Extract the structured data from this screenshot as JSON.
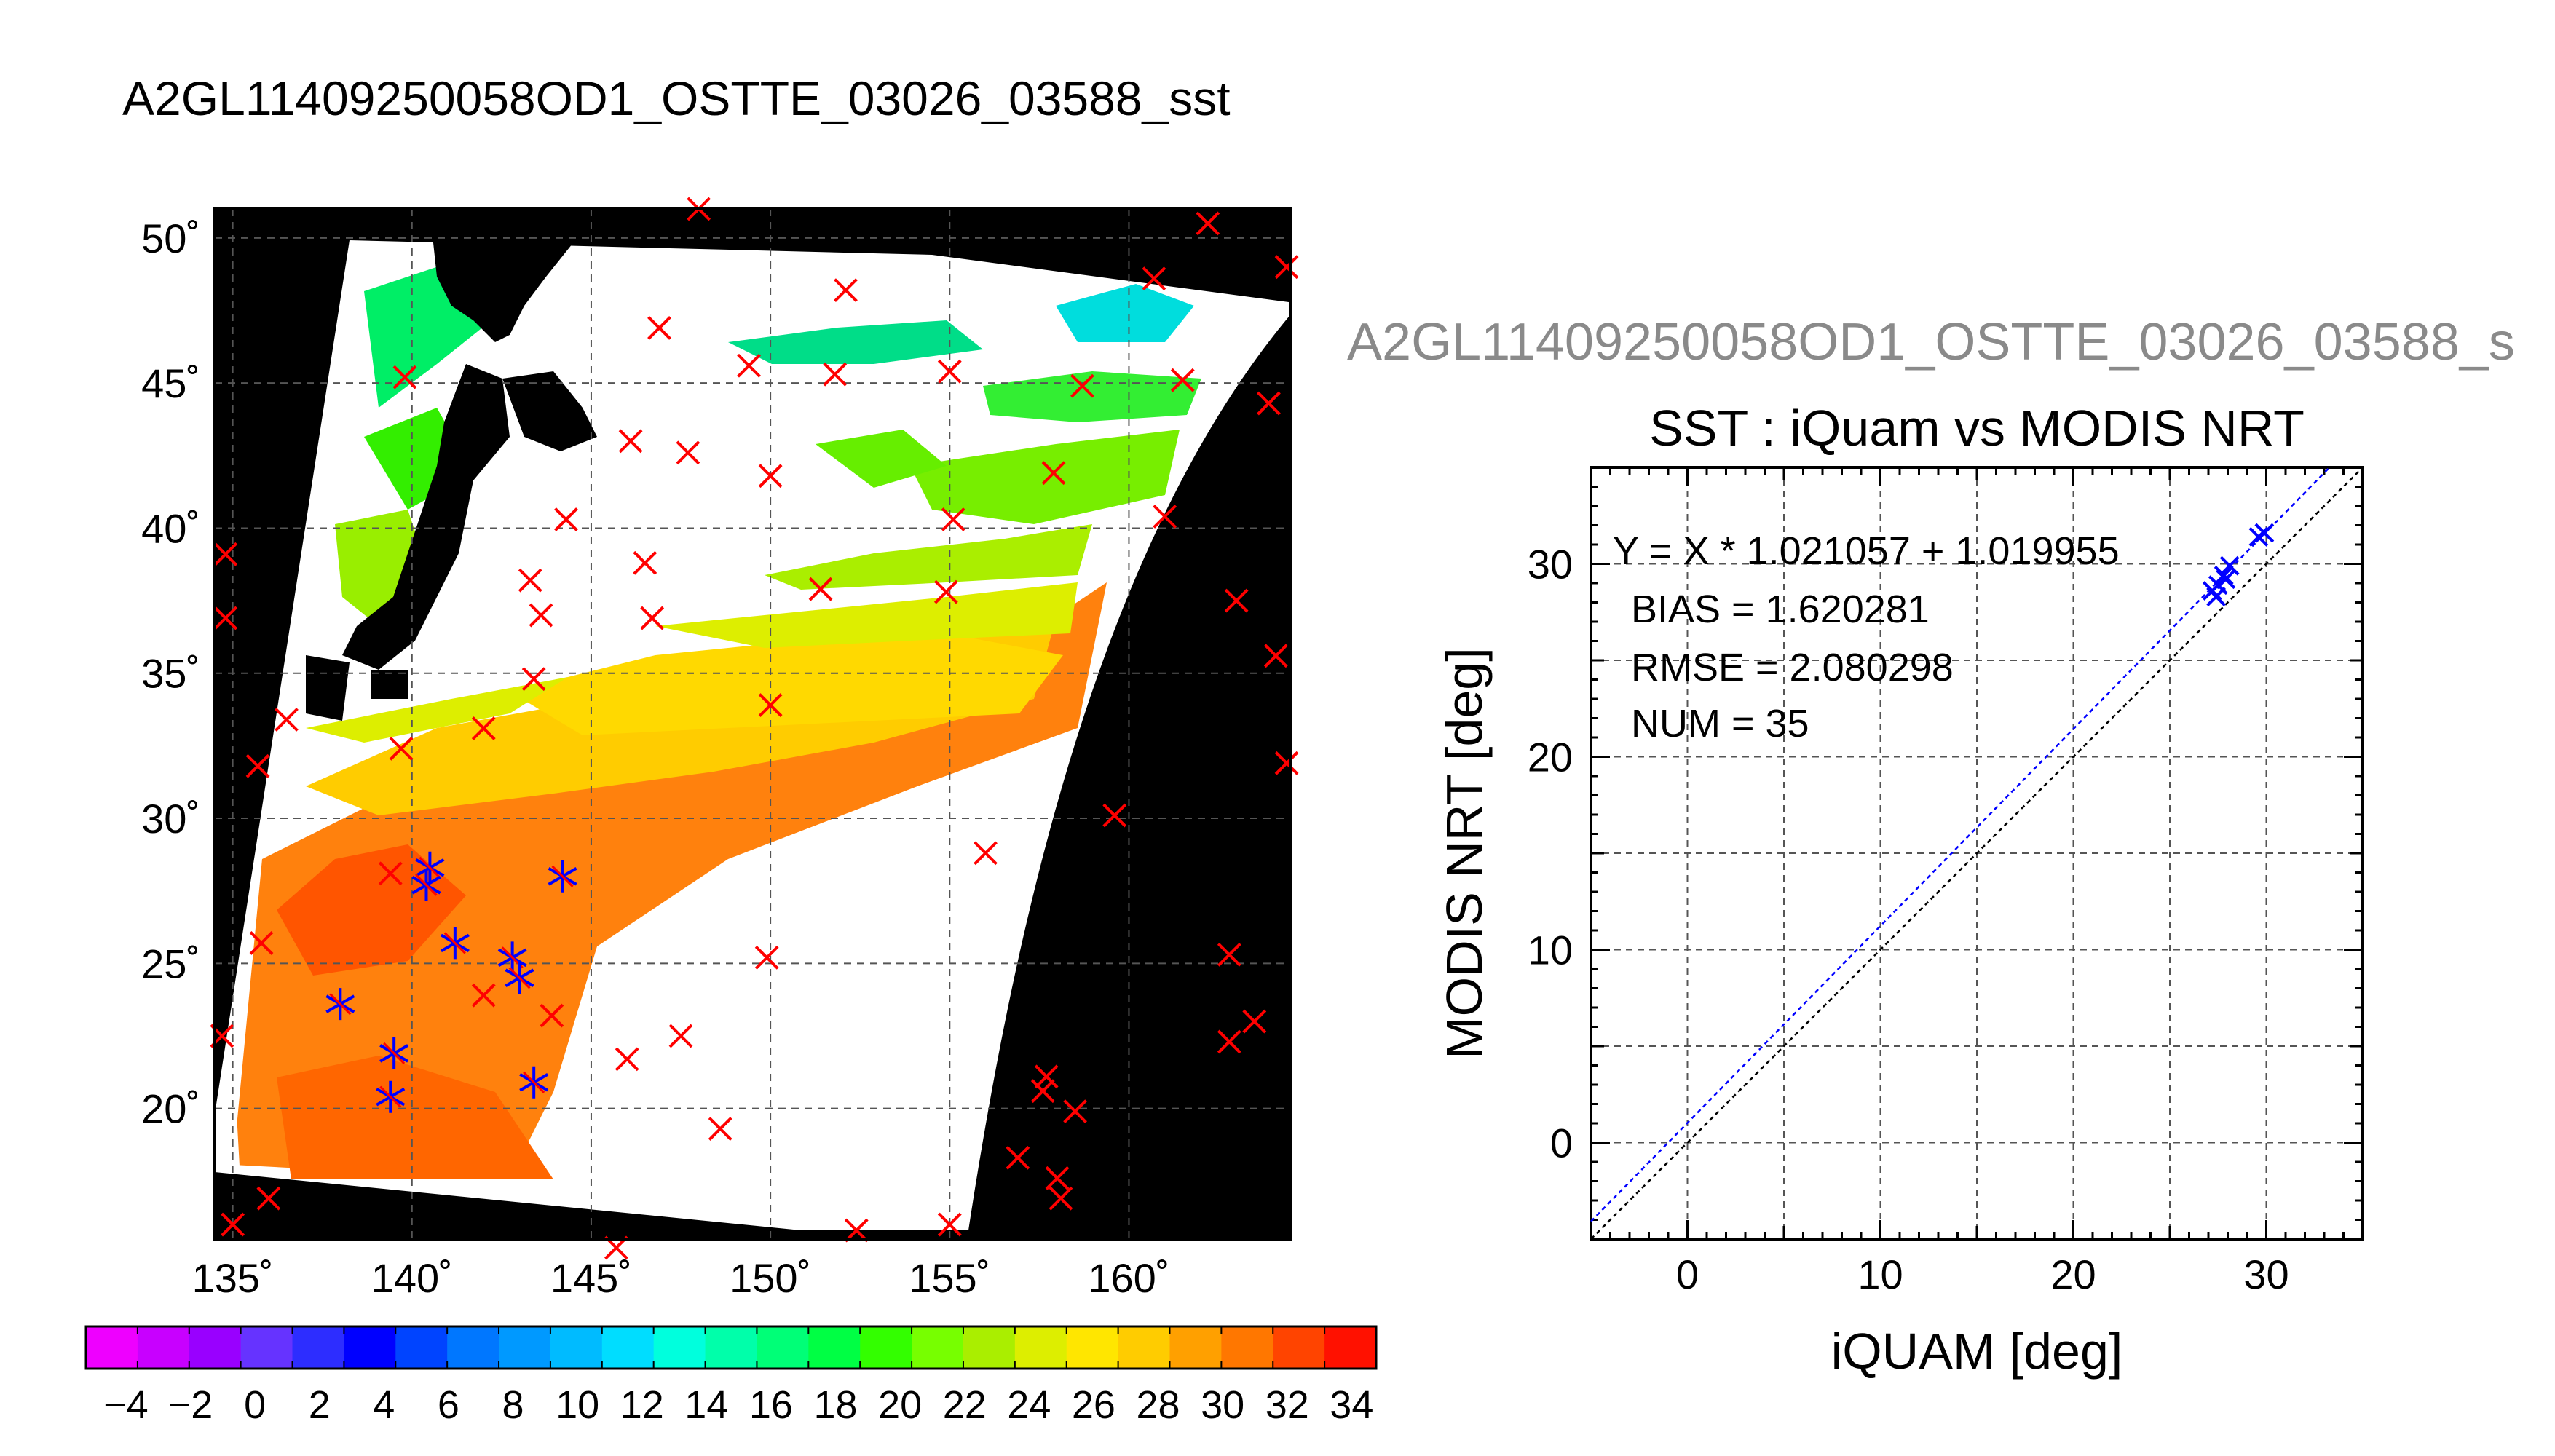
{
  "map": {
    "title": "A2GL11409250058OD1_OSTTE_03026_03588_sst",
    "lat_ticks": [
      "50˚",
      "45˚",
      "40˚",
      "35˚",
      "30˚",
      "25˚",
      "20˚"
    ],
    "lon_ticks": [
      "135˚",
      "140˚",
      "145˚",
      "150˚",
      "155˚",
      "160˚"
    ],
    "colorbar_ticks": [
      "−4",
      "−2",
      "0",
      "2",
      "4",
      "6",
      "8",
      "10",
      "12",
      "14",
      "16",
      "18",
      "20",
      "22",
      "24",
      "26",
      "28",
      "30",
      "32",
      "34"
    ],
    "colorbar_colors": [
      "#ee00ff",
      "#c800ff",
      "#9900ff",
      "#6633ff",
      "#2d2dff",
      "#0000ff",
      "#0044ff",
      "#0077ff",
      "#0099ff",
      "#00bbff",
      "#00ddff",
      "#00ffdd",
      "#00ffaa",
      "#00ff77",
      "#00ff44",
      "#33ff00",
      "#77ff00",
      "#aaee00",
      "#ddee00",
      "#ffe600",
      "#ffcc00",
      "#ffa000",
      "#ff7700",
      "#ff4400",
      "#ff1100"
    ]
  },
  "scatter": {
    "subtitle": "A2GL11409250058OD1_OSTTE_03026_03588_s",
    "title": "SST : iQuam vs MODIS NRT",
    "xlabel": "iQUAM [deg]",
    "ylabel": "MODIS NRT [deg]",
    "stats": [
      "Y = X * 1.021057 + 1.019955",
      "BIAS = 1.620281",
      "RMSE = 2.080298",
      "NUM = 35"
    ],
    "xticks": [
      "0",
      "10",
      "20",
      "30"
    ],
    "yticks": [
      "0",
      "10",
      "20",
      "30"
    ]
  },
  "chart_data": [
    {
      "type": "heatmap",
      "title": "A2GL11409250058OD1_OSTTE_03026_03588_sst",
      "xlabel": "",
      "ylabel": "",
      "x_range": [
        134.5,
        164.5
      ],
      "y_range": [
        15.5,
        51.0
      ],
      "x_ticks": [
        135,
        140,
        145,
        150,
        155,
        160
      ],
      "y_ticks": [
        20,
        25,
        30,
        35,
        40,
        45,
        50
      ],
      "colorbar_range": [
        -5,
        35
      ],
      "grid": true,
      "matchup_points": [
        [
          140.5,
          28.3
        ],
        [
          140.4,
          27.7
        ],
        [
          144.2,
          28.0
        ],
        [
          141.2,
          25.7
        ],
        [
          142.8,
          25.2
        ],
        [
          143.0,
          24.5
        ],
        [
          138.0,
          23.6
        ],
        [
          139.5,
          21.9
        ],
        [
          139.4,
          20.4
        ],
        [
          143.4,
          20.9
        ]
      ]
    },
    {
      "type": "scatter",
      "title": "SST : iQuam vs MODIS NRT",
      "xlabel": "iQUAM [deg]",
      "ylabel": "MODIS NRT [deg]",
      "xlim": [
        -5,
        35
      ],
      "ylim": [
        -5,
        35
      ],
      "grid": true,
      "series": [
        {
          "points": [
            [
              27.2,
              28.6
            ],
            [
              27.5,
              28.9
            ],
            [
              27.8,
              29.4
            ],
            [
              28.1,
              29.9
            ],
            [
              27.4,
              28.3
            ],
            [
              29.6,
              31.4
            ],
            [
              29.9,
              31.6
            ],
            [
              27.9,
              29.2
            ]
          ]
        }
      ],
      "fit": {
        "slope": 1.021057,
        "intercept": 1.019955
      },
      "stats": {
        "bias": 1.620281,
        "rmse": 2.080298,
        "num": 35
      }
    }
  ]
}
